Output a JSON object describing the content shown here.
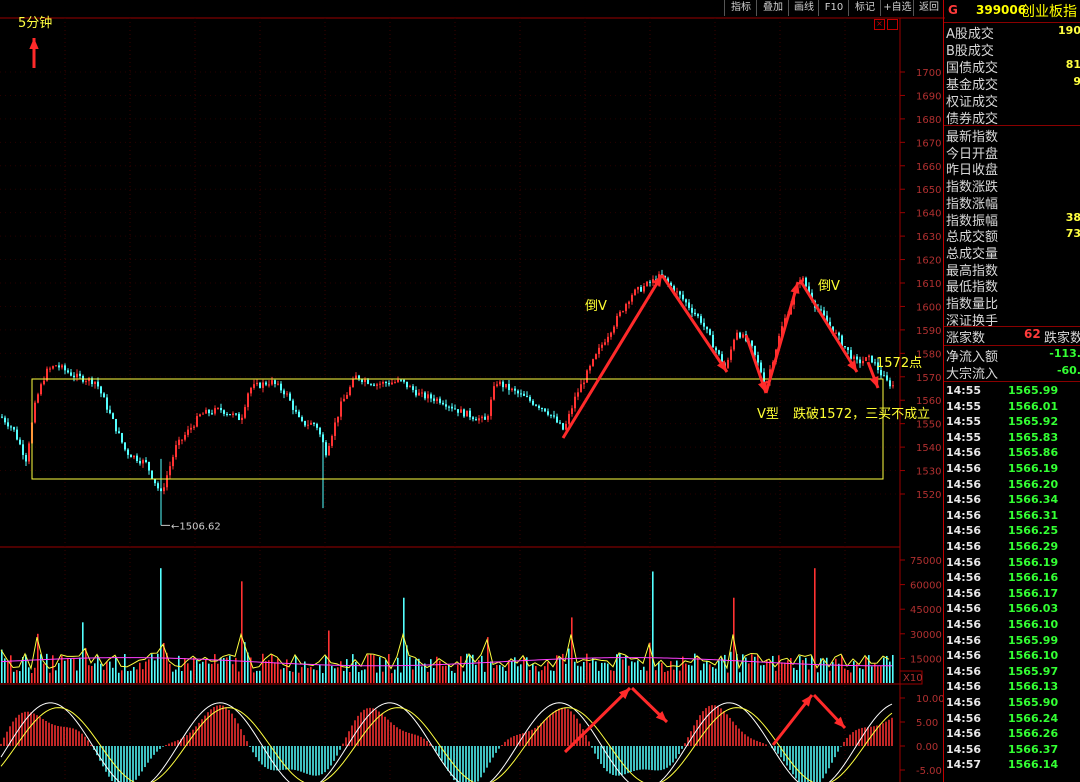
{
  "toolbar": {
    "buttons": [
      "指标",
      "叠加",
      "画线",
      "F10",
      "标记",
      "+自选",
      "返回"
    ],
    "close_icon": "close-icon",
    "restore_icon": "restore-icon"
  },
  "timeframe_label": "5分钟",
  "price_chart": {
    "y_ticks": [
      "1700",
      "1690",
      "1680",
      "1670",
      "1660",
      "1650",
      "1640",
      "1630",
      "1620",
      "1610",
      "1600",
      "1590",
      "1580",
      "1570",
      "1560",
      "1550",
      "1540",
      "1530",
      "1520"
    ],
    "low_label": "1506.62",
    "annotations": {
      "inv_v_left": "倒V",
      "inv_v_right": "倒V",
      "v_shape": "V型",
      "break_note": "跌破1572，三买不成立",
      "level_note": "1572点"
    }
  },
  "volume_chart": {
    "y_ticks": [
      "75000",
      "60000",
      "45000",
      "30000",
      "15000"
    ],
    "scale_label": "X10"
  },
  "macd_chart": {
    "y_ticks": [
      "10.00",
      "5.00",
      "0.00",
      "-5.00"
    ]
  },
  "quote_panel": {
    "g_label": "G",
    "code": "399006",
    "name": "创业板指",
    "volume_rows": [
      {
        "label": "A股成交",
        "value": "190"
      },
      {
        "label": "B股成交",
        "value": ""
      },
      {
        "label": "国债成交",
        "value": "81"
      },
      {
        "label": "基金成交",
        "value": "9"
      },
      {
        "label": "权证成交",
        "value": ""
      },
      {
        "label": "债券成交",
        "value": ""
      }
    ],
    "index_rows": [
      {
        "label": "最新指数",
        "value": ""
      },
      {
        "label": "今日开盘",
        "value": ""
      },
      {
        "label": "昨日收盘",
        "value": ""
      },
      {
        "label": "指数涨跌",
        "value": ""
      },
      {
        "label": "指数涨幅",
        "value": ""
      },
      {
        "label": "指数振幅",
        "value": "38"
      },
      {
        "label": "总成交额",
        "value": "73"
      },
      {
        "label": "总成交量",
        "value": ""
      },
      {
        "label": "最高指数",
        "value": ""
      },
      {
        "label": "最低指数",
        "value": ""
      },
      {
        "label": "指数量比",
        "value": ""
      },
      {
        "label": "深证换手",
        "value": ""
      }
    ],
    "breadth": {
      "up_label": "涨家数",
      "up_value": "62",
      "down_label": "跌家数"
    },
    "flow_rows": [
      {
        "label": "净流入额",
        "value": "-113."
      },
      {
        "label": "大宗流入",
        "value": "-60."
      }
    ],
    "ticks": [
      {
        "time": "14:55",
        "price": "1565.99"
      },
      {
        "time": "14:55",
        "price": "1566.01"
      },
      {
        "time": "14:55",
        "price": "1565.92"
      },
      {
        "time": "14:55",
        "price": "1565.83"
      },
      {
        "time": "14:56",
        "price": "1565.86"
      },
      {
        "time": "14:56",
        "price": "1566.19"
      },
      {
        "time": "14:56",
        "price": "1566.20"
      },
      {
        "time": "14:56",
        "price": "1566.34"
      },
      {
        "time": "14:56",
        "price": "1566.31"
      },
      {
        "time": "14:56",
        "price": "1566.25"
      },
      {
        "time": "14:56",
        "price": "1566.29"
      },
      {
        "time": "14:56",
        "price": "1566.19"
      },
      {
        "time": "14:56",
        "price": "1566.16"
      },
      {
        "time": "14:56",
        "price": "1566.17"
      },
      {
        "time": "14:56",
        "price": "1566.03"
      },
      {
        "time": "14:56",
        "price": "1566.10"
      },
      {
        "time": "14:56",
        "price": "1565.99"
      },
      {
        "time": "14:56",
        "price": "1566.10"
      },
      {
        "time": "14:56",
        "price": "1565.97"
      },
      {
        "time": "14:56",
        "price": "1566.13"
      },
      {
        "time": "14:56",
        "price": "1565.90"
      },
      {
        "time": "14:56",
        "price": "1566.24"
      },
      {
        "time": "14:56",
        "price": "1566.26"
      },
      {
        "time": "14:56",
        "price": "1566.37"
      },
      {
        "time": "14:57",
        "price": "1566.14"
      }
    ]
  },
  "colors": {
    "up": "#ff3232",
    "down": "#54ffff",
    "box": "#ffff40",
    "arrow": "#ff2a2a",
    "tick_green": "#33ff33"
  }
}
